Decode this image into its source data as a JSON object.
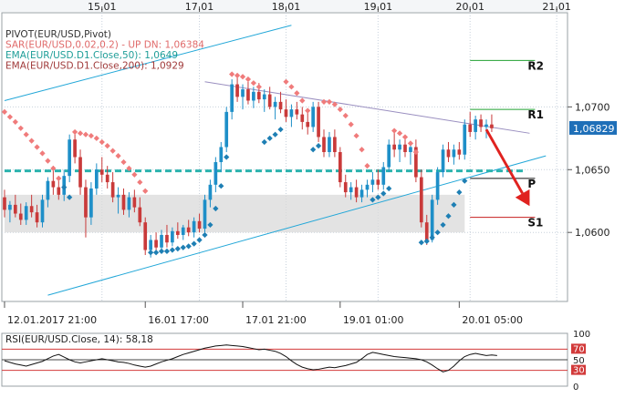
{
  "colors": {
    "frame": "#9aa0a6",
    "grid": "#c8d1dc",
    "bull": "#1e8fc8",
    "bear": "#c93a3a",
    "sar_up": "#1e7fb4",
    "sar_down": "#f07b7b",
    "ema50": "#2bb3ae",
    "ema200": "#b04a4a",
    "trend": "#22a7d8",
    "resistance": "#9a8fc0",
    "pivot_p": "#111111",
    "pivot_r": "#23a033",
    "pivot_s": "#c71f1f",
    "arrow": "#e0221f",
    "support_zone": "#d9d9d9",
    "rsi_line": "#111111",
    "rsi_levels": "#d23a3a",
    "price_badge": "#1e6fb8"
  },
  "chart_data": [
    {
      "type": "candlestick",
      "symbol": "EUR/USD",
      "legend": [
        {
          "text": "PIVOT(EUR/USD,Pivot)",
          "color": "#333333"
        },
        {
          "text": "SAR(EUR/USD,0.02,0.2)  -  UP   DN: 1,06384",
          "color": "#e06a6a"
        },
        {
          "text": "EMA(EUR/USD.D1.Close,50): 1,0649",
          "color": "#1f9e98"
        },
        {
          "text": "EMA(EUR/USD.D1.Close,200): 1,0929",
          "color": "#a03a3a"
        }
      ],
      "top_axis_labels": [
        {
          "label": "15.01",
          "index": 18
        },
        {
          "label": "17.01",
          "index": 36
        },
        {
          "label": "18.01",
          "index": 52
        },
        {
          "label": "19.01",
          "index": 69
        },
        {
          "label": "20.01",
          "index": 86
        },
        {
          "label": "21.01",
          "index": 102
        }
      ],
      "bottom_axis_labels": [
        {
          "label": "12.01.2017 21:00",
          "index": 0
        },
        {
          "label": "16.01 17:00",
          "index": 26
        },
        {
          "label": "17.01 21:00",
          "index": 44
        },
        {
          "label": "19.01 01:00",
          "index": 62
        },
        {
          "label": "20.01 05:00",
          "index": 84
        }
      ],
      "y_ticks": [
        {
          "value": 1.06,
          "label": "1,0600"
        },
        {
          "value": 1.065,
          "label": "1,0650"
        },
        {
          "value": 1.07,
          "label": "1,0700"
        }
      ],
      "ylim": [
        1.0545,
        1.0775
      ],
      "x_range": [
        -0.5,
        104
      ],
      "last_price": 1.06829,
      "last_price_label": "1,06829",
      "candles": [
        [
          1.0628,
          1.0634,
          1.0612,
          1.0618
        ],
        [
          1.0618,
          1.0625,
          1.0608,
          1.0622
        ],
        [
          1.0622,
          1.063,
          1.0612,
          1.0615
        ],
        [
          1.0615,
          1.0623,
          1.0606,
          1.061
        ],
        [
          1.061,
          1.0624,
          1.0606,
          1.0621
        ],
        [
          1.0621,
          1.063,
          1.0612,
          1.0616
        ],
        [
          1.0616,
          1.0622,
          1.0604,
          1.0608
        ],
        [
          1.0608,
          1.063,
          1.0604,
          1.0626
        ],
        [
          1.0626,
          1.0644,
          1.062,
          1.0641
        ],
        [
          1.0641,
          1.0653,
          1.063,
          1.0636
        ],
        [
          1.0636,
          1.0645,
          1.0626,
          1.063
        ],
        [
          1.063,
          1.065,
          1.0625,
          1.0645
        ],
        [
          1.0645,
          1.0678,
          1.064,
          1.0674
        ],
        [
          1.0674,
          1.0681,
          1.0655,
          1.066
        ],
        [
          1.066,
          1.0666,
          1.063,
          1.0636
        ],
        [
          1.0636,
          1.0642,
          1.0596,
          1.0612
        ],
        [
          1.0612,
          1.064,
          1.0606,
          1.0635
        ],
        [
          1.0635,
          1.0655,
          1.063,
          1.065
        ],
        [
          1.065,
          1.066,
          1.064,
          1.0646
        ],
        [
          1.0646,
          1.0653,
          1.0635,
          1.064
        ],
        [
          1.064,
          1.0648,
          1.0624,
          1.0628
        ],
        [
          1.0628,
          1.0636,
          1.0615,
          1.063
        ],
        [
          1.063,
          1.0635,
          1.0614,
          1.0618
        ],
        [
          1.0618,
          1.0632,
          1.0612,
          1.0628
        ],
        [
          1.0628,
          1.0634,
          1.0616,
          1.062
        ],
        [
          1.062,
          1.0628,
          1.0605,
          1.0608
        ],
        [
          1.0608,
          1.0612,
          1.0582,
          1.0586
        ],
        [
          1.0586,
          1.0598,
          1.058,
          1.0594
        ],
        [
          1.0594,
          1.06,
          1.0584,
          1.0588
        ],
        [
          1.0588,
          1.0602,
          1.0585,
          1.0598
        ],
        [
          1.0598,
          1.0606,
          1.0588,
          1.0592
        ],
        [
          1.0592,
          1.0604,
          1.0589,
          1.0601
        ],
        [
          1.0601,
          1.0608,
          1.0595,
          1.0598
        ],
        [
          1.0598,
          1.0606,
          1.0594,
          1.0604
        ],
        [
          1.0604,
          1.061,
          1.0597,
          1.06
        ],
        [
          1.06,
          1.0612,
          1.0596,
          1.0609
        ],
        [
          1.0609,
          1.0615,
          1.06,
          1.0603
        ],
        [
          1.0603,
          1.063,
          1.06,
          1.0626
        ],
        [
          1.0626,
          1.0642,
          1.062,
          1.0638
        ],
        [
          1.0638,
          1.066,
          1.0632,
          1.0656
        ],
        [
          1.0656,
          1.0672,
          1.0648,
          1.0668
        ],
        [
          1.0668,
          1.07,
          1.0664,
          1.0696
        ],
        [
          1.0696,
          1.0722,
          1.069,
          1.0718
        ],
        [
          1.0718,
          1.0724,
          1.0704,
          1.0708
        ],
        [
          1.0708,
          1.0718,
          1.0698,
          1.0714
        ],
        [
          1.0714,
          1.072,
          1.0702,
          1.0705
        ],
        [
          1.0705,
          1.0716,
          1.0699,
          1.0712
        ],
        [
          1.0712,
          1.0719,
          1.0703,
          1.0706
        ],
        [
          1.0706,
          1.0714,
          1.0696,
          1.071
        ],
        [
          1.071,
          1.0716,
          1.0698,
          1.07
        ],
        [
          1.07,
          1.0708,
          1.069,
          1.0704
        ],
        [
          1.0704,
          1.0712,
          1.0695,
          1.0698
        ],
        [
          1.0698,
          1.0706,
          1.0688,
          1.0692
        ],
        [
          1.0692,
          1.0702,
          1.0684,
          1.0698
        ],
        [
          1.0698,
          1.0704,
          1.069,
          1.0694
        ],
        [
          1.0694,
          1.07,
          1.0682,
          1.0688
        ],
        [
          1.0688,
          1.0696,
          1.0678,
          1.0684
        ],
        [
          1.0684,
          1.0704,
          1.068,
          1.07
        ],
        [
          1.07,
          1.0704,
          1.0672,
          1.0676
        ],
        [
          1.0676,
          1.0682,
          1.066,
          1.0664
        ],
        [
          1.0664,
          1.068,
          1.066,
          1.0676
        ],
        [
          1.0676,
          1.0682,
          1.066,
          1.0664
        ],
        [
          1.0664,
          1.0668,
          1.0636,
          1.064
        ],
        [
          1.064,
          1.0646,
          1.0628,
          1.0632
        ],
        [
          1.0632,
          1.064,
          1.0626,
          1.0636
        ],
        [
          1.0636,
          1.0642,
          1.0624,
          1.0628
        ],
        [
          1.0628,
          1.0638,
          1.0624,
          1.0634
        ],
        [
          1.0634,
          1.0642,
          1.0628,
          1.0638
        ],
        [
          1.0638,
          1.0648,
          1.0632,
          1.0642
        ],
        [
          1.0642,
          1.065,
          1.0634,
          1.0638
        ],
        [
          1.0638,
          1.0656,
          1.0634,
          1.0652
        ],
        [
          1.0652,
          1.0674,
          1.0648,
          1.067
        ],
        [
          1.067,
          1.068,
          1.066,
          1.0666
        ],
        [
          1.0666,
          1.0674,
          1.0656,
          1.067
        ],
        [
          1.067,
          1.0676,
          1.066,
          1.0664
        ],
        [
          1.0664,
          1.067,
          1.0654,
          1.0668
        ],
        [
          1.0668,
          1.0674,
          1.064,
          1.0644
        ],
        [
          1.0644,
          1.065,
          1.0604,
          1.0608
        ],
        [
          1.0608,
          1.0614,
          1.059,
          1.0594
        ],
        [
          1.0594,
          1.063,
          1.0592,
          1.0626
        ],
        [
          1.0626,
          1.0652,
          1.0622,
          1.0648
        ],
        [
          1.0648,
          1.067,
          1.0644,
          1.0666
        ],
        [
          1.0666,
          1.0672,
          1.0656,
          1.066
        ],
        [
          1.066,
          1.067,
          1.0654,
          1.0666
        ],
        [
          1.0666,
          1.0672,
          1.0658,
          1.0662
        ],
        [
          1.0662,
          1.069,
          1.0658,
          1.0686
        ],
        [
          1.0686,
          1.0696,
          1.0676,
          1.068
        ],
        [
          1.068,
          1.0693,
          1.0674,
          1.069
        ],
        [
          1.069,
          1.0694,
          1.068,
          1.0684
        ],
        [
          1.0684,
          1.069,
          1.0675,
          1.0686
        ],
        [
          1.0686,
          1.0694,
          1.068,
          1.0683
        ]
      ],
      "sar_points": [
        [
          0,
          1.0696
        ],
        [
          1,
          1.0692
        ],
        [
          2,
          1.0688
        ],
        [
          3,
          1.0683
        ],
        [
          4,
          1.0678
        ],
        [
          5,
          1.0673
        ],
        [
          6,
          1.0668
        ],
        [
          7,
          1.0663
        ],
        [
          8,
          1.0657
        ],
        [
          9,
          1.0651
        ],
        [
          10,
          1.0643
        ],
        [
          11,
          1.0636
        ],
        [
          12,
          1.0628
        ],
        [
          13,
          1.068
        ],
        [
          14,
          1.0679
        ],
        [
          15,
          1.0678
        ],
        [
          16,
          1.0677
        ],
        [
          17,
          1.0675
        ],
        [
          18,
          1.0672
        ],
        [
          19,
          1.0669
        ],
        [
          20,
          1.0665
        ],
        [
          21,
          1.0661
        ],
        [
          22,
          1.0656
        ],
        [
          23,
          1.0651
        ],
        [
          24,
          1.0646
        ],
        [
          25,
          1.064
        ],
        [
          26,
          1.0633
        ],
        [
          27,
          1.0584
        ],
        [
          28,
          1.0584
        ],
        [
          29,
          1.0585
        ],
        [
          30,
          1.0585
        ],
        [
          31,
          1.0586
        ],
        [
          32,
          1.0587
        ],
        [
          33,
          1.0588
        ],
        [
          34,
          1.0589
        ],
        [
          35,
          1.0591
        ],
        [
          36,
          1.0594
        ],
        [
          37,
          1.0598
        ],
        [
          38,
          1.0606
        ],
        [
          39,
          1.0619
        ],
        [
          40,
          1.0637
        ],
        [
          41,
          1.066
        ],
        [
          42,
          1.0726
        ],
        [
          43,
          1.0725
        ],
        [
          44,
          1.0724
        ],
        [
          45,
          1.0722
        ],
        [
          46,
          1.0719
        ],
        [
          47,
          1.0716
        ],
        [
          48,
          1.0672
        ],
        [
          49,
          1.0675
        ],
        [
          50,
          1.0678
        ],
        [
          51,
          1.0682
        ],
        [
          52,
          1.072
        ],
        [
          53,
          1.0716
        ],
        [
          54,
          1.0711
        ],
        [
          55,
          1.0705
        ],
        [
          56,
          1.0697
        ],
        [
          57,
          1.0666
        ],
        [
          58,
          1.0669
        ],
        [
          59,
          1.0704
        ],
        [
          60,
          1.0704
        ],
        [
          61,
          1.0702
        ],
        [
          62,
          1.0698
        ],
        [
          63,
          1.0693
        ],
        [
          64,
          1.0686
        ],
        [
          65,
          1.0677
        ],
        [
          66,
          1.0666
        ],
        [
          67,
          1.0653
        ],
        [
          68,
          1.0626
        ],
        [
          69,
          1.0628
        ],
        [
          70,
          1.0631
        ],
        [
          71,
          1.0635
        ],
        [
          72,
          1.0681
        ],
        [
          73,
          1.0679
        ],
        [
          74,
          1.0676
        ],
        [
          75,
          1.0671
        ],
        [
          76,
          1.0664
        ],
        [
          77,
          1.0592
        ],
        [
          78,
          1.0593
        ],
        [
          79,
          1.0596
        ],
        [
          80,
          1.06
        ],
        [
          81,
          1.0606
        ],
        [
          82,
          1.0613
        ],
        [
          83,
          1.0622
        ],
        [
          84,
          1.0632
        ],
        [
          85,
          1.0641
        ]
      ],
      "ema50": {
        "level": 1.0649,
        "from_index": 0,
        "to_index": 96
      },
      "support_zone": {
        "from_index": 0,
        "to_index": 85,
        "low": 1.06,
        "high": 1.063
      },
      "trendlines": [
        {
          "name": "upper-channel",
          "p1": [
            0,
            1.0705
          ],
          "p2": [
            53,
            1.0765
          ]
        },
        {
          "name": "lower-channel",
          "p1": [
            8,
            1.055
          ],
          "p2": [
            100,
            1.0661
          ]
        },
        {
          "name": "resistance",
          "p1": [
            37,
            1.072
          ],
          "p2": [
            97,
            1.0679
          ]
        }
      ],
      "pivot_levels": [
        {
          "label": "R2",
          "value": 1.0737,
          "from_index": 86,
          "to_index": 98,
          "role": "r"
        },
        {
          "label": "R1",
          "value": 1.0698,
          "from_index": 86,
          "to_index": 98,
          "role": "r"
        },
        {
          "label": "P",
          "value": 1.0643,
          "from_index": 86,
          "to_index": 98,
          "role": "p"
        },
        {
          "label": "S1",
          "value": 1.0612,
          "from_index": 86,
          "to_index": 98,
          "role": "s"
        }
      ],
      "forecast_arrow": {
        "from": [
          89,
          1.0682
        ],
        "to": [
          97,
          1.0621
        ]
      }
    },
    {
      "type": "line",
      "title": "RSI(EUR/USD.Close, 14): 58,18",
      "ylim": [
        0,
        100
      ],
      "levels": [
        {
          "value": 100,
          "label": "100",
          "style": "plain"
        },
        {
          "value": 70,
          "label": "70",
          "style": "badge"
        },
        {
          "value": 50,
          "label": "50",
          "style": "plain"
        },
        {
          "value": 30,
          "label": "30",
          "style": "badge"
        },
        {
          "value": 0,
          "label": "0",
          "style": "plain"
        }
      ],
      "values": [
        48,
        45,
        42,
        40,
        38,
        41,
        44,
        47,
        52,
        57,
        60,
        55,
        50,
        46,
        44,
        46,
        48,
        50,
        52,
        50,
        48,
        46,
        45,
        43,
        40,
        38,
        36,
        38,
        42,
        46,
        49,
        52,
        56,
        60,
        63,
        66,
        69,
        72,
        74,
        76,
        77,
        78,
        77,
        76,
        75,
        73,
        71,
        69,
        70,
        68,
        66,
        62,
        56,
        48,
        41,
        36,
        33,
        31,
        32,
        34,
        36,
        35,
        37,
        39,
        42,
        45,
        52,
        60,
        64,
        62,
        60,
        58,
        56,
        55,
        54,
        53,
        52,
        50,
        46,
        40,
        33,
        27,
        30,
        38,
        48,
        56,
        60,
        62,
        60,
        58,
        59,
        58
      ]
    }
  ]
}
